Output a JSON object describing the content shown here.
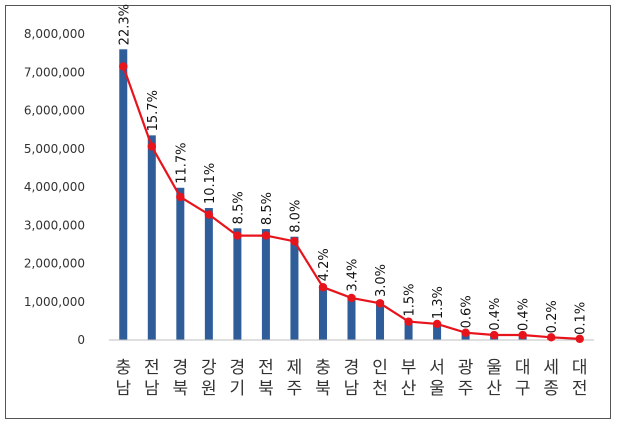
{
  "chart_data": {
    "type": "bar",
    "title": "",
    "xlabel": "",
    "ylabel": "",
    "ylim": [
      0,
      8000000
    ],
    "yticks": [
      "0",
      "1,000,000",
      "2,000,000",
      "3,000,000",
      "4,000,000",
      "5,000,000",
      "6,000,000",
      "7,000,000",
      "8,000,000"
    ],
    "categories": [
      [
        "충",
        "남"
      ],
      [
        "전",
        "남"
      ],
      [
        "경",
        "북"
      ],
      [
        "강",
        "원"
      ],
      [
        "경",
        "기"
      ],
      [
        "전",
        "북"
      ],
      [
        "제",
        "주"
      ],
      [
        "충",
        "북"
      ],
      [
        "경",
        "남"
      ],
      [
        "인",
        "천"
      ],
      [
        "부",
        "산"
      ],
      [
        "서",
        "울"
      ],
      [
        "광",
        "주"
      ],
      [
        "울",
        "산"
      ],
      [
        "대",
        "구"
      ],
      [
        "세",
        "종"
      ],
      [
        "대",
        "전"
      ]
    ],
    "series": [
      {
        "type": "bar",
        "values": [
          7600000,
          5350000,
          3980000,
          3450000,
          2920000,
          2900000,
          2700000,
          1430000,
          1160000,
          1020000,
          510000,
          440000,
          200000,
          140000,
          130000,
          70000,
          30000
        ]
      },
      {
        "type": "line",
        "values": [
          7150000,
          5060000,
          3740000,
          3280000,
          2730000,
          2730000,
          2580000,
          1380000,
          1100000,
          960000,
          480000,
          420000,
          190000,
          130000,
          130000,
          70000,
          30000
        ]
      }
    ],
    "data_labels": [
      "22.3%",
      "15.7%",
      "11.7%",
      "10.1%",
      "8.5%",
      "8.5%",
      "8.0%",
      "4.2%",
      "3.4%",
      "3.0%",
      "1.5%",
      "1.3%",
      "0.6%",
      "0.4%",
      "0.4%",
      "0.2%",
      "0.1%"
    ],
    "grid": false,
    "legend": "none",
    "colors": {
      "bar": "#2E5D9A",
      "line": "#E8141C",
      "axis": "#BFBFBF"
    }
  }
}
